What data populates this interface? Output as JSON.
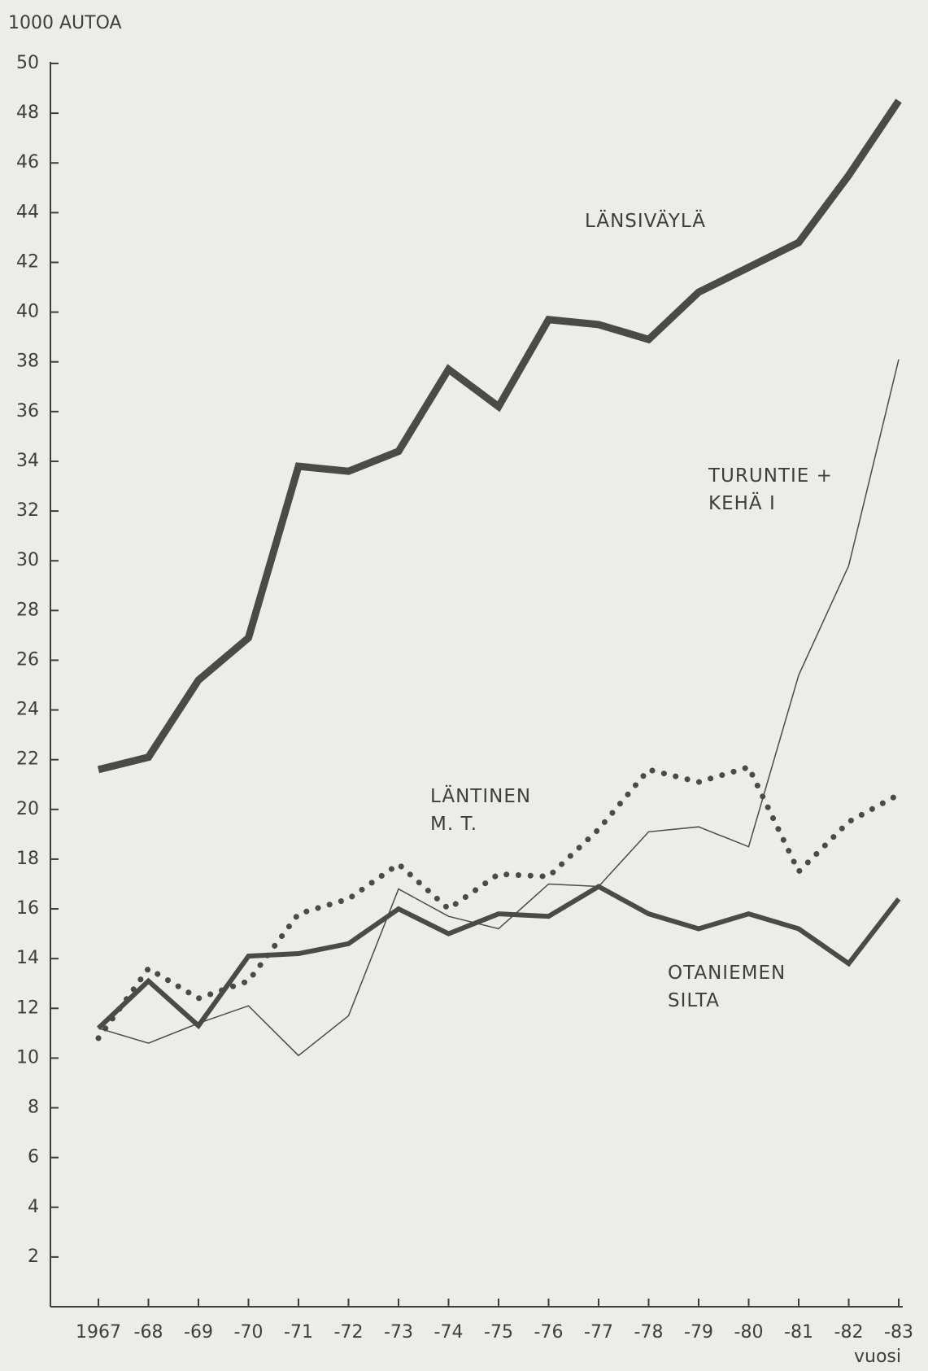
{
  "chart_data": {
    "type": "line",
    "y_axis_label": "1000 AUTOA",
    "x_axis_label": "vuosi",
    "categories": [
      "1967",
      "-68",
      "-69",
      "-70",
      "-71",
      "-72",
      "-73",
      "-74",
      "-75",
      "-76",
      "-77",
      "-78",
      "-79",
      "-80",
      "-81",
      "-82",
      "-83"
    ],
    "ylim": [
      0,
      50
    ],
    "yticks": [
      2,
      4,
      6,
      8,
      10,
      12,
      14,
      16,
      18,
      20,
      22,
      24,
      26,
      28,
      30,
      32,
      34,
      36,
      38,
      40,
      42,
      44,
      46,
      48,
      50
    ],
    "series": [
      {
        "name": [
          "LÄNSIVÄYLÄ"
        ],
        "color": "#4a4a48",
        "line_width": 9,
        "dotted": false,
        "values": [
          21.6,
          22.1,
          25.2,
          26.9,
          33.8,
          33.6,
          34.4,
          37.7,
          36.2,
          39.7,
          39.5,
          38.9,
          40.8,
          41.8,
          42.8,
          45.5,
          48.5
        ]
      },
      {
        "name": [
          "TURUNTIE +",
          "KEHÄ I"
        ],
        "color": "#4a4a48",
        "line_width": 1.5,
        "dotted": false,
        "values": [
          11.2,
          10.6,
          11.4,
          12.1,
          10.1,
          11.7,
          16.8,
          15.7,
          15.2,
          17.0,
          16.9,
          19.1,
          19.3,
          18.5,
          25.4,
          29.8,
          38.1
        ]
      },
      {
        "name": [
          "LÄNTINEN",
          "M. T."
        ],
        "color": "#4a4a48",
        "line_width": 7,
        "dotted": true,
        "values": [
          10.8,
          13.6,
          12.4,
          13.1,
          15.8,
          16.4,
          17.8,
          16.0,
          17.4,
          17.3,
          19.2,
          21.6,
          21.1,
          21.7,
          17.5,
          19.5,
          20.6
        ]
      },
      {
        "name": [
          "OTANIEMEN",
          "SILTA"
        ],
        "color": "#4a4a48",
        "line_width": 6,
        "dotted": false,
        "values": [
          11.2,
          13.1,
          11.3,
          14.1,
          14.2,
          14.6,
          16.0,
          15.0,
          15.8,
          15.7,
          16.9,
          15.8,
          15.2,
          15.8,
          15.2,
          13.8,
          16.4
        ]
      }
    ]
  }
}
